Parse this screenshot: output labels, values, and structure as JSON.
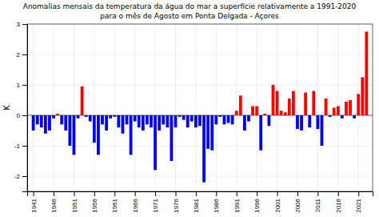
{
  "chart_data": {
    "type": "bar",
    "title": "Anomalias mensais da temperatura da água do mar a superfície relativamente a 1991-2020",
    "subtitle": "para o mês de Agosto em Ponta Delgada - Açores",
    "y_label": "K",
    "x": [
      1941,
      1942,
      1943,
      1944,
      1945,
      1946,
      1947,
      1948,
      1949,
      1950,
      1951,
      1952,
      1953,
      1954,
      1955,
      1956,
      1957,
      1958,
      1959,
      1960,
      1961,
      1962,
      1963,
      1964,
      1965,
      1966,
      1967,
      1968,
      1969,
      1970,
      1971,
      1972,
      1973,
      1974,
      1975,
      1976,
      1977,
      1978,
      1979,
      1980,
      1981,
      1982,
      1983,
      1984,
      1985,
      1986,
      1987,
      1988,
      1989,
      1990,
      1991,
      1992,
      1993,
      1994,
      1995,
      1996,
      1997,
      1998,
      1999,
      2000,
      2001,
      2002,
      2003,
      2004,
      2005,
      2006,
      2007,
      2008,
      2009,
      2010,
      2011,
      2012,
      2013,
      2014,
      2015,
      2016,
      2017,
      2018,
      2019,
      2020,
      2021,
      2022,
      2023
    ],
    "values": [
      -0.5,
      -0.3,
      -0.4,
      -0.6,
      -0.5,
      -0.1,
      0.05,
      -0.3,
      -0.5,
      -1.0,
      -1.3,
      -0.1,
      0.95,
      -0.05,
      -0.2,
      -0.9,
      -1.3,
      -0.3,
      -0.5,
      -0.1,
      -0.05,
      -0.4,
      -0.6,
      -0.3,
      -1.3,
      -0.2,
      -0.4,
      -0.5,
      -0.3,
      -0.4,
      -1.8,
      -0.5,
      -0.3,
      -0.4,
      -1.5,
      -0.4,
      -0.05,
      -0.15,
      -0.4,
      -0.2,
      -0.4,
      -0.35,
      -2.2,
      -1.1,
      -1.15,
      -0.3,
      -0.05,
      -0.3,
      -0.25,
      -0.3,
      0.15,
      0.65,
      -0.5,
      -0.2,
      0.3,
      0.3,
      -1.15,
      0.05,
      -0.35,
      1.0,
      0.8,
      0.15,
      0.1,
      0.55,
      0.8,
      -0.45,
      -0.5,
      0.75,
      -0.4,
      0.8,
      -0.45,
      -1.0,
      0.55,
      -0.05,
      0.25,
      0.3,
      -0.1,
      0.45,
      0.5,
      -0.1,
      0.7,
      1.25,
      2.75
    ],
    "colors": [
      "#0000ff",
      "#0000ff",
      "#0000ff",
      "#0000ff",
      "#0000ff",
      "#0000ff",
      "#ff0000",
      "#0000ff",
      "#0000ff",
      "#0000ff",
      "#0000ff",
      "#0000ff",
      "#ff0000",
      "#0000ff",
      "#0000ff",
      "#0000ff",
      "#0000ff",
      "#0000ff",
      "#0000ff",
      "#0000ff",
      "#0000ff",
      "#0000ff",
      "#0000ff",
      "#0000ff",
      "#0000ff",
      "#0000ff",
      "#0000ff",
      "#0000ff",
      "#0000ff",
      "#0000ff",
      "#0000ff",
      "#0000ff",
      "#0000ff",
      "#0000ff",
      "#0000ff",
      "#0000ff",
      "#0000ff",
      "#0000ff",
      "#0000ff",
      "#0000ff",
      "#0000ff",
      "#0000ff",
      "#0000ff",
      "#0000ff",
      "#0000ff",
      "#0000ff",
      "#0000ff",
      "#0000ff",
      "#0000ff",
      "#0000ff",
      "#ff0000",
      "#ff0000",
      "#0000ff",
      "#0000ff",
      "#ff0000",
      "#ff0000",
      "#0000ff",
      "#ff0000",
      "#0000ff",
      "#ff0000",
      "#ff0000",
      "#ff0000",
      "#ff0000",
      "#ff0000",
      "#ff0000",
      "#0000ff",
      "#0000ff",
      "#ff0000",
      "#0000ff",
      "#ff0000",
      "#0000ff",
      "#0000ff",
      "#ff0000",
      "#0000ff",
      "#ff0000",
      "#ff0000",
      "#0000ff",
      "#ff0000",
      "#ff0000",
      "#0000ff",
      "#ff0000",
      "#ff0000",
      "#ff0000"
    ],
    "xlim": [
      1939.5,
      2024.5
    ],
    "xticks": [
      1941,
      1946,
      1951,
      1956,
      1961,
      1966,
      1971,
      1976,
      1981,
      1986,
      1991,
      1996,
      2001,
      2006,
      2011,
      2016,
      2021
    ],
    "ylim": [
      -2.5,
      3.0
    ],
    "yticks": [
      -2,
      -1,
      0,
      1,
      2,
      3
    ],
    "grid": true
  }
}
